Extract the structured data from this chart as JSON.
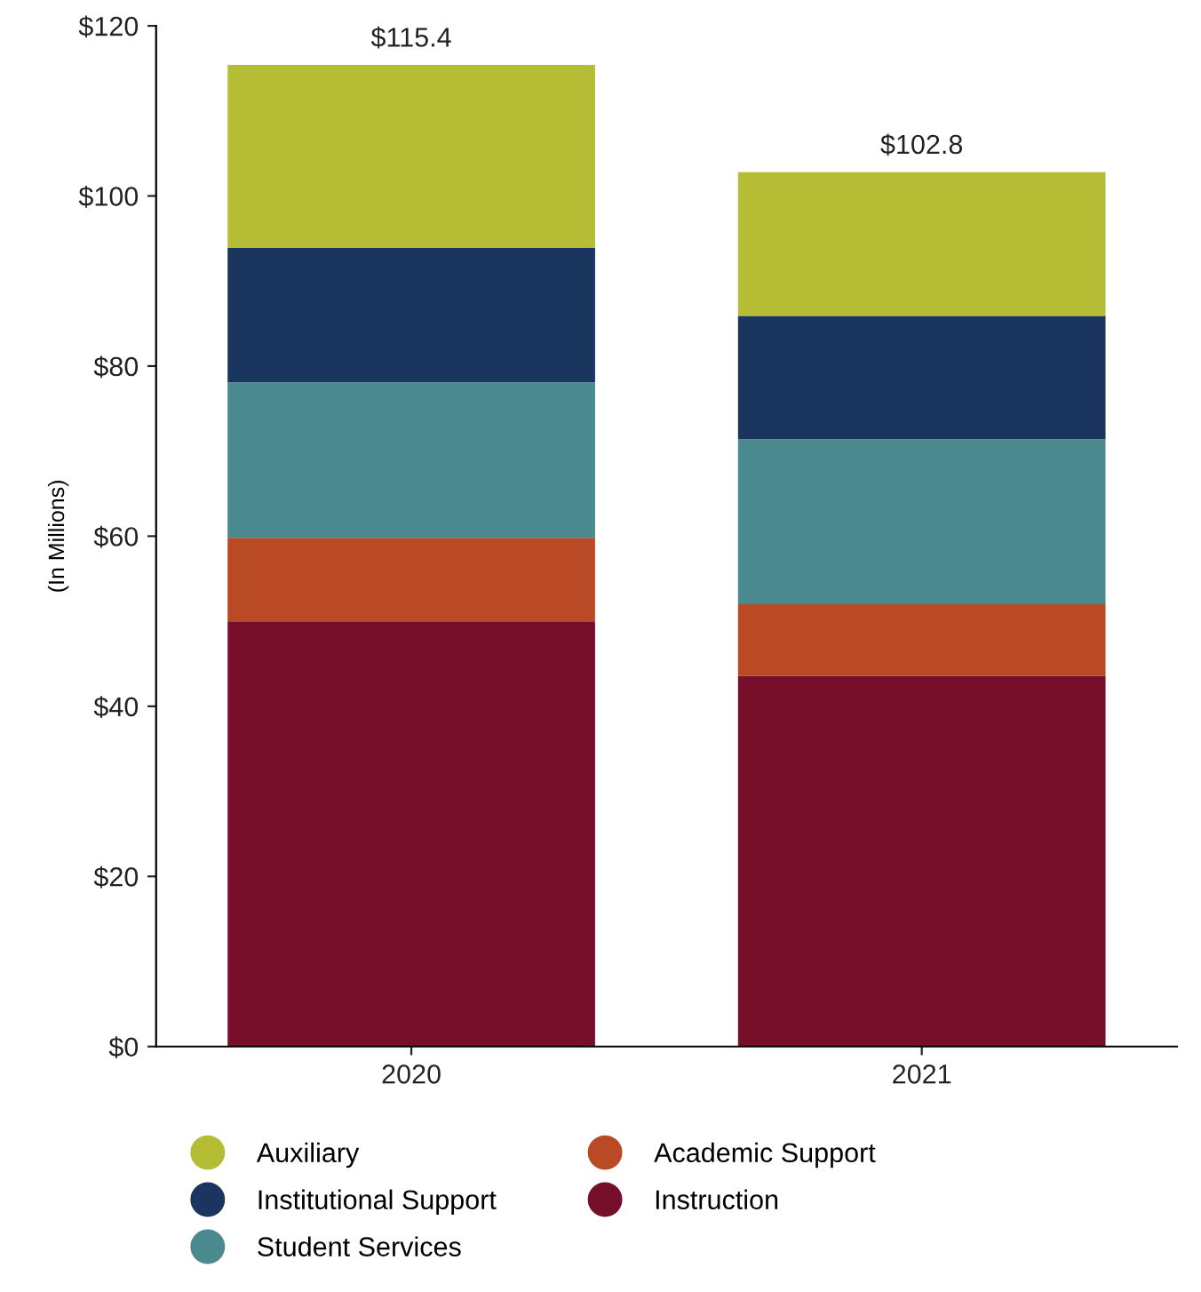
{
  "chart_data": {
    "type": "bar",
    "stacked": true,
    "ylabel": "(In Millions)",
    "categories": [
      "2020",
      "2021"
    ],
    "series": [
      {
        "name": "Instruction",
        "color": "#780f2a",
        "values": [
          50.0,
          43.6
        ]
      },
      {
        "name": "Academic Support",
        "color": "#b94a25",
        "values": [
          9.8,
          8.4
        ]
      },
      {
        "name": "Student Services",
        "color": "#4a8a8f",
        "values": [
          18.3,
          19.4
        ]
      },
      {
        "name": "Institutional Support",
        "color": "#1a355e",
        "values": [
          15.8,
          14.5
        ]
      },
      {
        "name": "Auxiliary",
        "color": "#b5bd35",
        "values": [
          21.5,
          16.9
        ]
      }
    ],
    "totals": [
      "$115.4",
      "$102.8"
    ],
    "ylim": [
      0,
      120
    ],
    "yticks": [
      {
        "value": 0,
        "label": "$0"
      },
      {
        "value": 20,
        "label": "$20"
      },
      {
        "value": 40,
        "label": "$40"
      },
      {
        "value": 60,
        "label": "$60"
      },
      {
        "value": 80,
        "label": "$80"
      },
      {
        "value": 100,
        "label": "$100"
      },
      {
        "value": 120,
        "label": "$120"
      }
    ],
    "grid": false,
    "legend": "bottom",
    "marker": "circle"
  }
}
